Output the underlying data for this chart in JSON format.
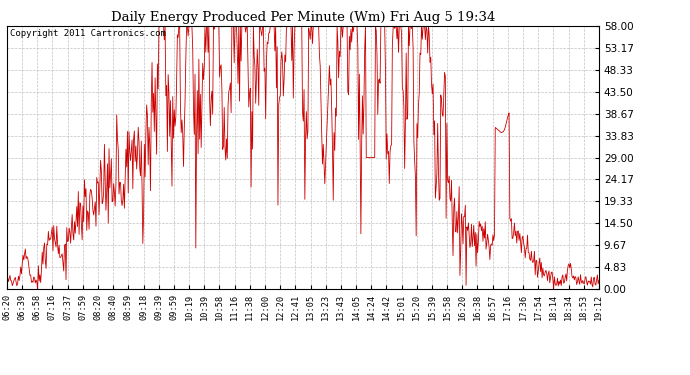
{
  "title": "Daily Energy Produced Per Minute (Wm) Fri Aug 5 19:34",
  "copyright": "Copyright 2011 Cartronics.com",
  "line_color": "#cc0000",
  "bg_color": "#ffffff",
  "plot_bg_color": "#ffffff",
  "grid_color": "#bbbbbb",
  "yticks": [
    0.0,
    4.83,
    9.67,
    14.5,
    19.33,
    24.17,
    29.0,
    33.83,
    38.67,
    43.5,
    48.33,
    53.17,
    58.0
  ],
  "ymin": 0.0,
  "ymax": 58.0,
  "xtick_labels": [
    "06:20",
    "06:39",
    "06:58",
    "07:16",
    "07:37",
    "07:59",
    "08:20",
    "08:40",
    "08:59",
    "09:18",
    "09:39",
    "09:59",
    "10:19",
    "10:39",
    "10:58",
    "11:16",
    "11:38",
    "12:00",
    "12:20",
    "12:41",
    "13:05",
    "13:23",
    "13:43",
    "14:05",
    "14:24",
    "14:42",
    "15:01",
    "15:20",
    "15:39",
    "15:58",
    "16:20",
    "16:38",
    "16:57",
    "17:16",
    "17:36",
    "17:54",
    "18:14",
    "18:34",
    "18:53",
    "19:12"
  ]
}
